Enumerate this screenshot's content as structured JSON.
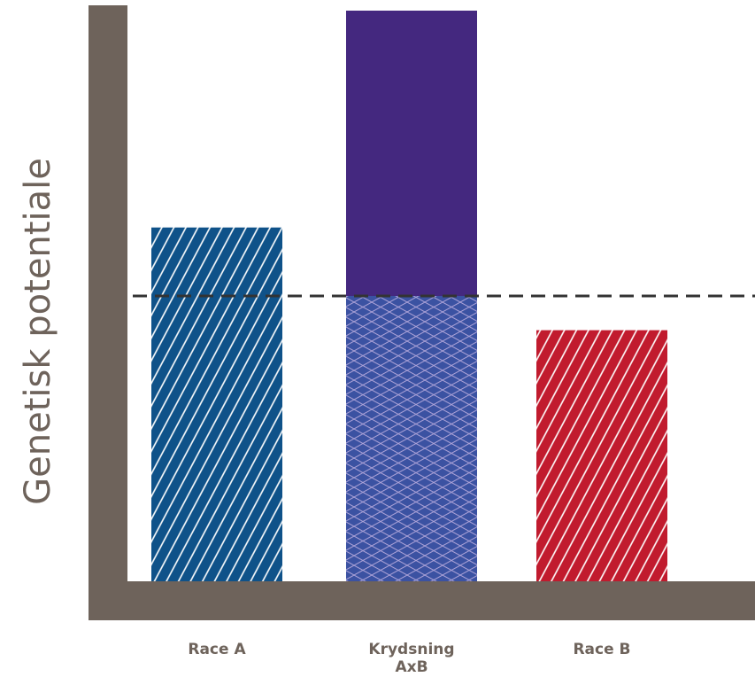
{
  "chart_data": {
    "type": "bar",
    "ylabel": "Genetisk potentiale",
    "xlabel": "",
    "ylim": [
      0,
      100
    ],
    "grid": false,
    "categories": [
      {
        "lines": [
          "Race A"
        ],
        "base": 62,
        "extra": 0,
        "pattern": "diagonal",
        "color": "#0f5289"
      },
      {
        "lines": [
          "Krydsning",
          "AxB"
        ],
        "base": 50,
        "extra": 50,
        "pattern": "crosshatch",
        "color": "#3b52a2",
        "extra_color": "#44287f"
      },
      {
        "lines": [
          "Race B"
        ],
        "base": 44,
        "extra": 0,
        "pattern": "diagonal",
        "color": "#c11b2e"
      }
    ],
    "reference_line": {
      "value": 50,
      "style": "dashed",
      "color": "#333333"
    },
    "axis_color": "#6e635b"
  }
}
